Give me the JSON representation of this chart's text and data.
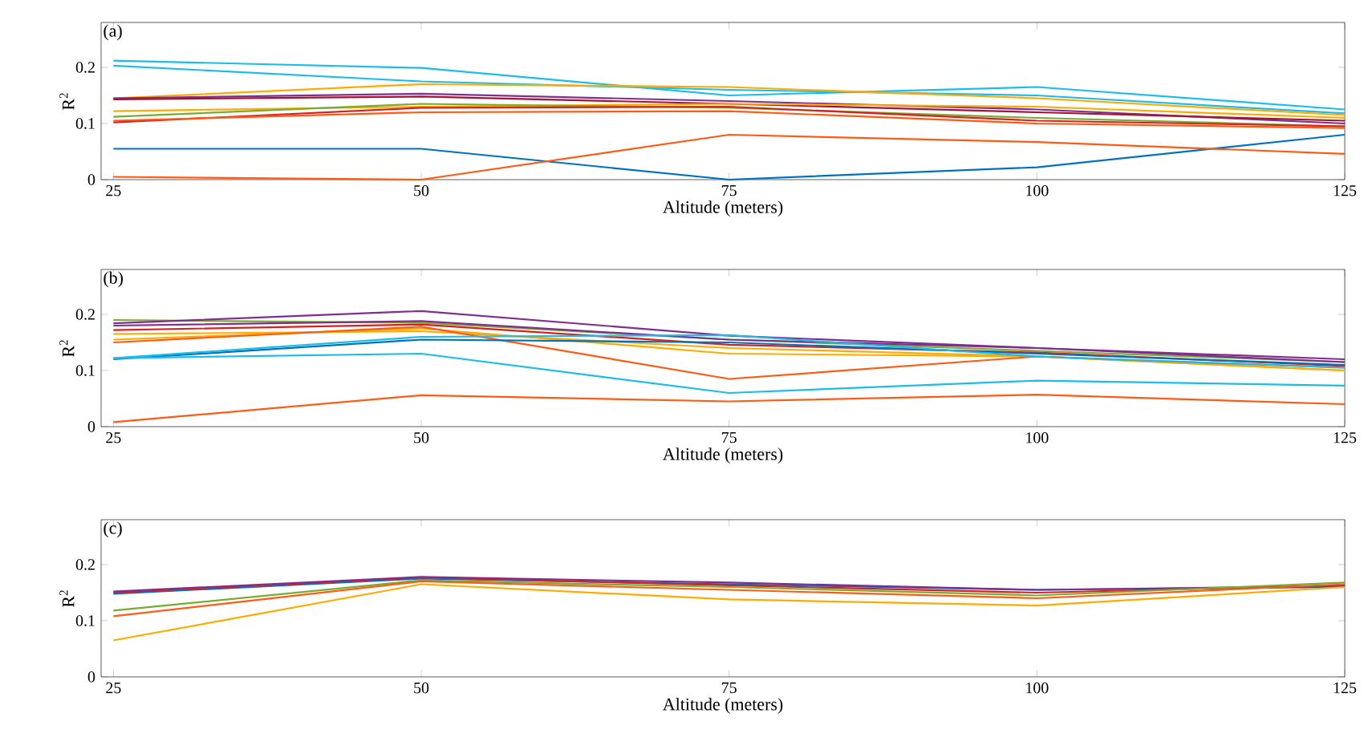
{
  "chart_data": [
    {
      "type": "line",
      "xlabel": "Altitude (meters)",
      "ylabel": "R$^{2}$",
      "annotations": [
        "(a)"
      ],
      "x": [
        25,
        50,
        75,
        100,
        125
      ],
      "xlim": [
        24,
        125
      ],
      "ylim": [
        0,
        0.28
      ],
      "xticks": [
        25,
        50,
        75,
        100,
        125
      ],
      "yticks": [
        0,
        0.1,
        0.2
      ],
      "series": [
        {
          "color": "#1cbcea",
          "values": [
            0.212,
            0.199,
            0.15,
            0.165,
            0.125
          ]
        },
        {
          "color": "#1cbcea",
          "values": [
            0.203,
            0.175,
            0.16,
            0.15,
            0.118
          ]
        },
        {
          "color": "#ffaa00",
          "values": [
            0.145,
            0.17,
            0.165,
            0.145,
            0.115
          ]
        },
        {
          "color": "#7e2f8e",
          "values": [
            0.145,
            0.153,
            0.14,
            0.125,
            0.1
          ]
        },
        {
          "color": "#a2142f",
          "values": [
            0.143,
            0.148,
            0.135,
            0.12,
            0.105
          ]
        },
        {
          "color": "#ffaa00",
          "values": [
            0.122,
            0.13,
            0.135,
            0.13,
            0.11
          ]
        },
        {
          "color": "#77ac30",
          "values": [
            0.112,
            0.135,
            0.128,
            0.11,
            0.095
          ]
        },
        {
          "color": "#d92020",
          "values": [
            0.102,
            0.128,
            0.13,
            0.105,
            0.095
          ]
        },
        {
          "color": "#ff5a14",
          "values": [
            0.105,
            0.12,
            0.122,
            0.1,
            0.092
          ]
        },
        {
          "color": "#0072bd",
          "values": [
            0.055,
            0.055,
            0.0,
            0.022,
            0.08
          ]
        },
        {
          "color": "#ff5a14",
          "values": [
            0.005,
            0.0,
            0.08,
            0.067,
            0.046
          ]
        }
      ]
    },
    {
      "type": "line",
      "xlabel": "Altitude (meters)",
      "ylabel": "R$^{2}$",
      "annotations": [
        "(b)"
      ],
      "x": [
        25,
        50,
        75,
        100,
        125
      ],
      "xlim": [
        24,
        125
      ],
      "ylim": [
        0,
        0.28
      ],
      "xticks": [
        25,
        50,
        75,
        100,
        125
      ],
      "yticks": [
        0,
        0.1,
        0.2
      ],
      "series": [
        {
          "color": "#77ac30",
          "values": [
            0.19,
            0.185,
            0.155,
            0.135,
            0.115
          ]
        },
        {
          "color": "#7e2f8e",
          "values": [
            0.184,
            0.206,
            0.162,
            0.14,
            0.12
          ]
        },
        {
          "color": "#7e2f8e",
          "values": [
            0.18,
            0.188,
            0.155,
            0.14,
            0.115
          ]
        },
        {
          "color": "#d92020",
          "values": [
            0.172,
            0.182,
            0.146,
            0.132,
            0.108
          ]
        },
        {
          "color": "#ffaa00",
          "values": [
            0.165,
            0.17,
            0.14,
            0.125,
            0.1
          ]
        },
        {
          "color": "#ffaa00",
          "values": [
            0.155,
            0.175,
            0.13,
            0.125,
            0.1
          ]
        },
        {
          "color": "#ff5a14",
          "values": [
            0.15,
            0.178,
            0.085,
            0.125,
            0.105
          ]
        },
        {
          "color": "#0072bd",
          "values": [
            0.12,
            0.155,
            0.15,
            0.13,
            0.11
          ]
        },
        {
          "color": "#1cbcea",
          "values": [
            0.122,
            0.16,
            0.163,
            0.125,
            0.105
          ]
        },
        {
          "color": "#1cbcea",
          "values": [
            0.122,
            0.13,
            0.06,
            0.082,
            0.073
          ]
        },
        {
          "color": "#ff5a14",
          "values": [
            0.008,
            0.056,
            0.045,
            0.057,
            0.04
          ]
        }
      ]
    },
    {
      "type": "line",
      "xlabel": "Altitude (meters)",
      "ylabel": "R$^{2}$",
      "annotations": [
        "(c)"
      ],
      "x": [
        25,
        50,
        75,
        100,
        125
      ],
      "xlim": [
        24,
        125
      ],
      "ylim": [
        0,
        0.28
      ],
      "xticks": [
        25,
        50,
        75,
        100,
        125
      ],
      "yticks": [
        0,
        0.1,
        0.2
      ],
      "series": [
        {
          "color": "#0072bd",
          "values": [
            0.148,
            0.175,
            0.165,
            0.155,
            0.16
          ]
        },
        {
          "color": "#d92020",
          "values": [
            0.15,
            0.177,
            0.163,
            0.15,
            0.163
          ]
        },
        {
          "color": "#7e2f8e",
          "values": [
            0.152,
            0.178,
            0.168,
            0.155,
            0.162
          ]
        },
        {
          "color": "#77ac30",
          "values": [
            0.118,
            0.172,
            0.16,
            0.145,
            0.168
          ]
        },
        {
          "color": "#ff5a14",
          "values": [
            0.108,
            0.17,
            0.155,
            0.14,
            0.165
          ]
        },
        {
          "color": "#ffaa00",
          "values": [
            0.065,
            0.165,
            0.138,
            0.127,
            0.16
          ]
        }
      ]
    }
  ]
}
